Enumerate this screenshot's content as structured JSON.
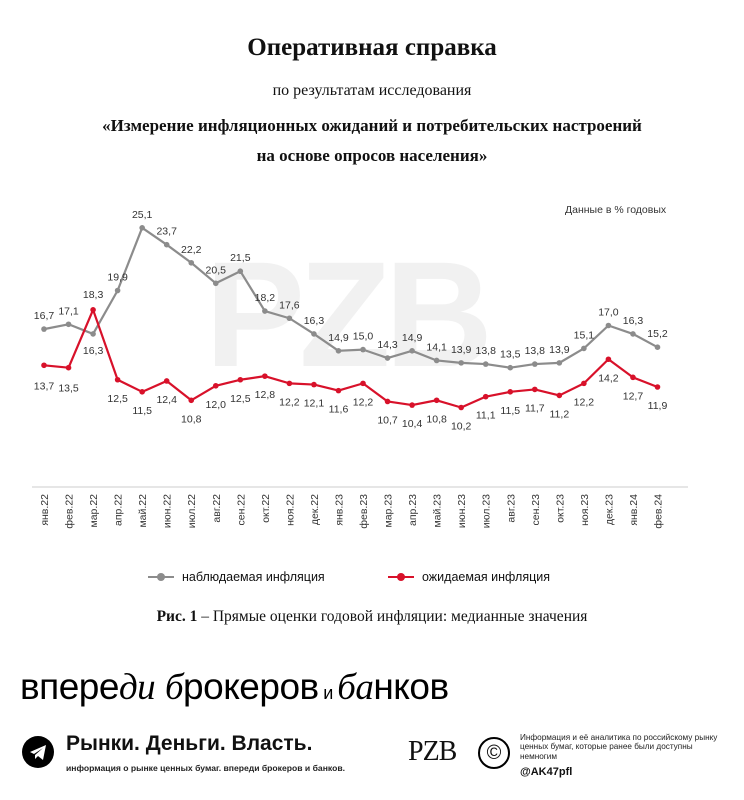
{
  "header": {
    "title": "Оперативная справка",
    "subtitle": "по результатам исследования",
    "study_line1": "«Измерение инфляционных ожиданий и потребительских настроений",
    "study_line2": "на основе опросов населения»"
  },
  "units_note": "Данные в % годовых",
  "watermark": "РZВ",
  "chart_data": {
    "type": "line",
    "categories": [
      "янв.22",
      "фев.22",
      "мар.22",
      "апр.22",
      "май.22",
      "июн.22",
      "июл.22",
      "авг.22",
      "сен.22",
      "окт.22",
      "ноя.22",
      "дек.22",
      "янв.23",
      "фев.23",
      "мар.23",
      "апр.23",
      "май.23",
      "июн.23",
      "июл.23",
      "авг.23",
      "сен.23",
      "окт.23",
      "ноя.23",
      "дек.23",
      "янв.24",
      "фев.24"
    ],
    "series": [
      {
        "name": "наблюдаемая инфляция",
        "color": "#8c8c8c",
        "values": [
          16.7,
          17.1,
          16.3,
          19.9,
          25.1,
          23.7,
          22.2,
          20.5,
          21.5,
          18.2,
          17.6,
          16.3,
          14.9,
          15.0,
          14.3,
          14.9,
          14.1,
          13.9,
          13.8,
          13.5,
          13.8,
          13.9,
          15.1,
          17.0,
          16.3,
          15.2
        ],
        "labels": [
          "16,7",
          "17,1",
          "16,3",
          "19,9",
          "25,1",
          "23,7",
          "22,2",
          "20,5",
          "21,5",
          "18,2",
          "17,6",
          "16,3",
          "14,9",
          "15,0",
          "14,3",
          "14,9",
          "14,1",
          "13,9",
          "13,8",
          "13,5",
          "13,8",
          "13,9",
          "15,1",
          "17,0",
          "16,3",
          "15,2"
        ]
      },
      {
        "name": "ожидаемая инфляция",
        "color": "#d8112a",
        "values": [
          13.7,
          13.5,
          18.3,
          12.5,
          11.5,
          12.4,
          10.8,
          12.0,
          12.5,
          12.8,
          12.2,
          12.1,
          11.6,
          12.2,
          10.7,
          10.4,
          10.8,
          10.2,
          11.1,
          11.5,
          11.7,
          11.2,
          12.2,
          14.2,
          12.7,
          11.9
        ],
        "labels": [
          "13,7",
          "13,5",
          "18,3",
          "12,5",
          "11,5",
          "12,4",
          "10,8",
          "12,0",
          "12,5",
          "12,8",
          "12,2",
          "12,1",
          "11,6",
          "12,2",
          "10,7",
          "10,4",
          "10,8",
          "10,2",
          "11,1",
          "11,5",
          "11,7",
          "11,2",
          "12,2",
          "14,2",
          "12,7",
          "11,9"
        ]
      }
    ],
    "grid": false
  },
  "caption": {
    "bold": "Рис. 1",
    "text": " – Прямые оценки годовой инфляции: медианные значения"
  },
  "footer": {
    "slogan_a": "впере",
    "slogan_b": "ди",
    "slogan_c": " ",
    "slogan_d": "б",
    "slogan_e": "рокеров",
    "slogan_f": " и ",
    "slogan_g": "ба",
    "slogan_h": "нков",
    "channel_name": "Рынки. Деньги. Власть.",
    "channel_desc": "информация о рынке ценных бумаг. впереди брокеров и банков.",
    "logo": "РZВ",
    "about": "Информация и её аналитика по российскому рынку ценных бумаг, которые ранее были доступны немногим",
    "handle": "@AK47pfl"
  }
}
